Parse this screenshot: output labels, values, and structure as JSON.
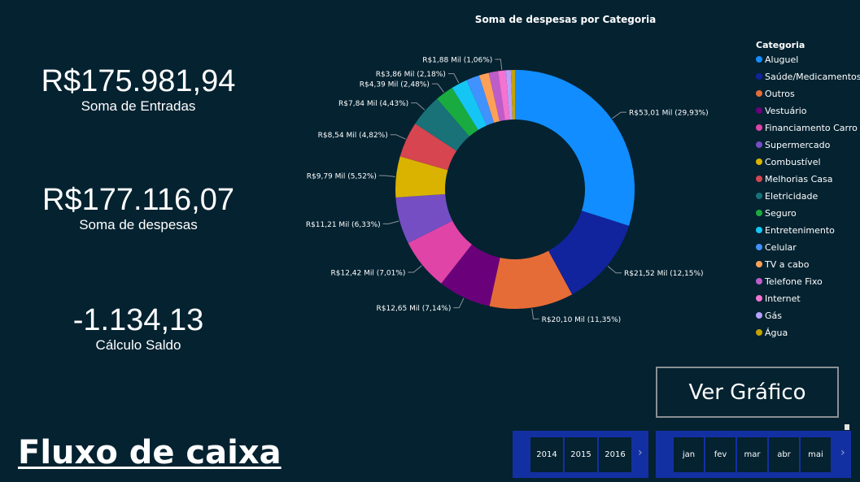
{
  "theme": {
    "background": "#042230",
    "text": "#ffffff",
    "slicer_background": "#1330a3",
    "button_border": "#8a8f94"
  },
  "kpis": {
    "entradas": {
      "value": "R$175.981,94",
      "label": "Soma de Entradas"
    },
    "despesas": {
      "value": "R$177.116,07",
      "label": "Soma de despesas"
    },
    "saldo": {
      "value": "-1.134,13",
      "label": "Cálculo Saldo"
    }
  },
  "chart_data": {
    "type": "pie",
    "variant": "donut",
    "title": "Soma de despesas por Categoria",
    "legend_title": "Categoria",
    "legend_position": "right",
    "categories": [
      "Aluguel",
      "Saúde/Medicamentos",
      "Outros",
      "Vestuário",
      "Financiamento Carro",
      "Supermercado",
      "Combustível",
      "Melhorias Casa",
      "Eletricidade",
      "Seguro",
      "Entretenimento",
      "Celular",
      "TV a cabo",
      "Telefone Fixo",
      "Internet",
      "Gás",
      "Água"
    ],
    "values": [
      53.01,
      21.52,
      20.1,
      12.65,
      12.42,
      11.21,
      9.79,
      8.54,
      7.84,
      4.39,
      3.86,
      3.17,
      2.34,
      2.21,
      1.88,
      1.17,
      0.99
    ],
    "value_unit": "R$ Mil",
    "colors": [
      "#118dff",
      "#12239e",
      "#e66c37",
      "#6b007b",
      "#e044a7",
      "#744ec2",
      "#d9b300",
      "#d64550",
      "#197278",
      "#1aab40",
      "#15c6f4",
      "#4092ff",
      "#ffa058",
      "#be5dc9",
      "#f472d0",
      "#b5a1ff",
      "#c4a200"
    ],
    "data_labels": [
      {
        "index": 0,
        "text": "R$53,01 Mil (29,93%)"
      },
      {
        "index": 1,
        "text": "R$21,52 Mil (12,15%)"
      },
      {
        "index": 2,
        "text": "R$20,10 Mil (11,35%)"
      },
      {
        "index": 3,
        "text": "R$12,65 Mil (7,14%)"
      },
      {
        "index": 4,
        "text": "R$12,42 Mil (7,01%)"
      },
      {
        "index": 5,
        "text": "R$11,21 Mil (6,33%)"
      },
      {
        "index": 6,
        "text": "R$9,79 Mil (5,52%)"
      },
      {
        "index": 7,
        "text": "R$8,54 Mil (4,82%)"
      },
      {
        "index": 8,
        "text": "R$7,84 Mil (4,43%)"
      },
      {
        "index": 9,
        "text": "R$4,39 Mil (2,48%)"
      },
      {
        "index": 10,
        "text": "R$3,86 Mil (2,18%)"
      },
      {
        "index": 14,
        "text": "R$1,88 Mil (1,06%)"
      }
    ]
  },
  "button": {
    "label": "Ver Gráfico"
  },
  "year_slicer": {
    "items": [
      "2014",
      "2015",
      "2016"
    ],
    "next_icon": "chevron-right-icon"
  },
  "month_slicer": {
    "items": [
      "jan",
      "fev",
      "mar",
      "abr",
      "mai"
    ],
    "next_icon": "chevron-right-icon"
  },
  "brand": {
    "title": "Fluxo de caixa"
  }
}
